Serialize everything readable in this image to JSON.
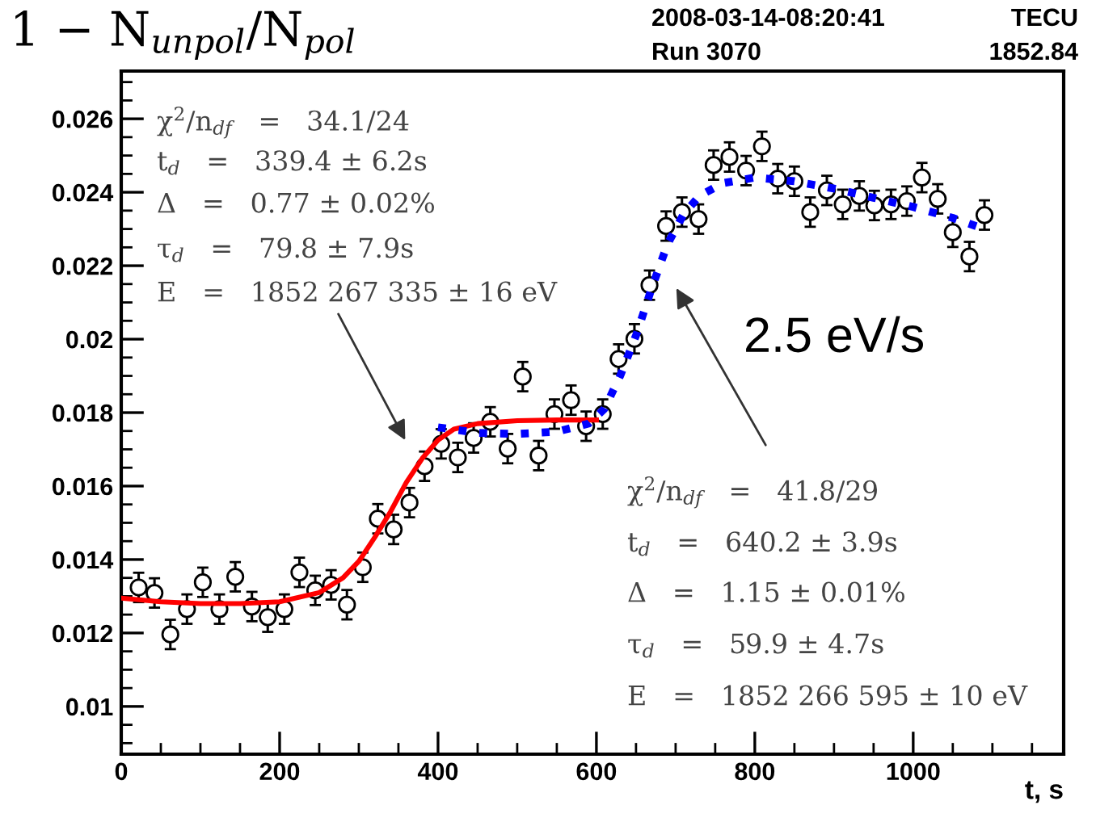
{
  "chart_data": {
    "type": "scatter",
    "title": "1 − N$_{unpol}$/N$_{pol}$",
    "xlabel": "t, s",
    "xlim": [
      0,
      1190
    ],
    "ylim": [
      0.0087,
      0.0273
    ],
    "xticks": [
      0,
      200,
      400,
      600,
      800,
      1000
    ],
    "yticks": [
      0.01,
      0.012,
      0.014,
      0.016,
      0.018,
      0.02,
      0.022,
      0.024,
      0.026
    ],
    "grid": false,
    "legend": false,
    "series": [
      {
        "color": "#000000",
        "marker": "circle",
        "x": [
          22,
          42,
          62,
          83,
          103,
          124,
          144,
          165,
          185,
          206,
          225,
          245,
          265,
          285,
          305,
          324,
          344,
          364,
          383,
          404,
          425,
          445,
          466,
          488,
          507,
          527,
          547,
          568,
          587,
          608,
          628,
          648,
          667,
          688,
          708,
          729,
          748,
          768,
          789,
          809,
          829,
          850,
          870,
          891,
          911,
          932,
          951,
          972,
          992,
          1011,
          1031,
          1050,
          1071,
          1090
        ],
        "values": [
          0.01324,
          0.01309,
          0.01196,
          0.01265,
          0.01338,
          0.01265,
          0.01353,
          0.01272,
          0.01243,
          0.01265,
          0.01365,
          0.01316,
          0.01331,
          0.01277,
          0.01379,
          0.01511,
          0.01482,
          0.01555,
          0.01654,
          0.01715,
          0.01678,
          0.01731,
          0.01775,
          0.01702,
          0.01898,
          0.01683,
          0.01796,
          0.01834,
          0.01763,
          0.01796,
          0.01946,
          0.02001,
          0.02147,
          0.02308,
          0.02346,
          0.02327,
          0.02474,
          0.02496,
          0.02459,
          0.02525,
          0.02437,
          0.0243,
          0.02346,
          0.02405,
          0.02367,
          0.0239,
          0.02364,
          0.02367,
          0.02376,
          0.0244,
          0.02382,
          0.02291,
          0.02225,
          0.02338
        ],
        "errors": [
          0.0004,
          0.0004,
          0.0004,
          0.0004,
          0.0004,
          0.0004,
          0.0004,
          0.0004,
          0.0004,
          0.0004,
          0.0004,
          0.0004,
          0.0004,
          0.0004,
          0.0004,
          0.0004,
          0.0004,
          0.0004,
          0.0004,
          0.0004,
          0.0004,
          0.0004,
          0.0004,
          0.0004,
          0.0004,
          0.0004,
          0.0004,
          0.0004,
          0.0004,
          0.0004,
          0.0004,
          0.0004,
          0.0004,
          0.0004,
          0.0004,
          0.0004,
          0.0004,
          0.0004,
          0.0004,
          0.0004,
          0.0004,
          0.0004,
          0.0004,
          0.0004,
          0.0004,
          0.0004,
          0.0004,
          0.0004,
          0.0004,
          0.0004,
          0.0004,
          0.0004,
          0.0004,
          0.0004
        ]
      },
      {
        "type": "line",
        "color": "#ff0000",
        "line_style": "solid",
        "x": [
          0,
          50,
          100,
          150,
          200,
          250,
          280,
          300,
          320,
          340,
          360,
          380,
          400,
          420,
          450,
          500,
          550,
          600
        ],
        "values": [
          0.01295,
          0.01285,
          0.0128,
          0.0128,
          0.01285,
          0.0131,
          0.0135,
          0.01395,
          0.0146,
          0.0153,
          0.0161,
          0.01675,
          0.01725,
          0.01755,
          0.0177,
          0.01778,
          0.0178,
          0.0178
        ]
      },
      {
        "type": "line",
        "color": "#0000ff",
        "line_style": "dotted",
        "x": [
          400,
          450,
          500,
          550,
          590,
          610,
          630,
          650,
          670,
          690,
          710,
          730,
          760,
          800,
          850,
          900,
          950,
          1000,
          1050,
          1090
        ],
        "values": [
          0.0176,
          0.01745,
          0.01742,
          0.01748,
          0.0177,
          0.0181,
          0.019,
          0.0201,
          0.0214,
          0.0226,
          0.0234,
          0.0239,
          0.02425,
          0.0244,
          0.0243,
          0.0241,
          0.02385,
          0.0236,
          0.0233,
          0.023
        ]
      }
    ],
    "annotations": [
      "χ$^{2}$/n$_{df}$   =   34.1/24",
      "t$_{d}$   =   339.4 ± 6.2s",
      "Δ   =   0.77 ± 0.02%",
      "τ$_{d}$   =   79.8 ± 7.9s",
      "E   =   1852 267 335 ± 16 eV",
      "χ$^{2}$/n$_{df}$   =   41.8/29",
      "t$_{d}$   =   640.2 ± 3.9s",
      "Δ   =   1.15 ± 0.01%",
      "τ$_{d}$   =   59.9 ± 4.7s",
      "E   =   1852 266 595 ± 10 eV",
      "2.5 eV/s",
      "2008-03-14-08:20:41",
      "Run 3070",
      "TECU",
      "1852.84"
    ]
  }
}
